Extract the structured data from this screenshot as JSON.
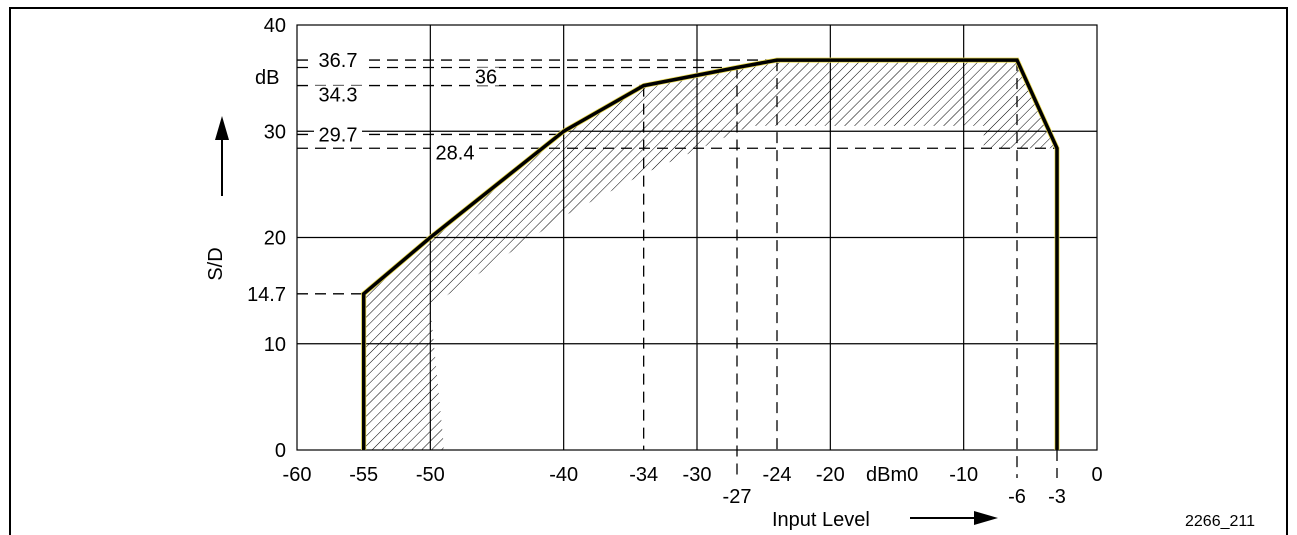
{
  "chart_data": {
    "type": "line",
    "title": "",
    "xlabel": "Input Level",
    "ylabel": "S/D",
    "y_unit": "dB",
    "x_unit": "dBm0",
    "xlim": [
      -60,
      0
    ],
    "ylim": [
      0,
      40
    ],
    "grid": true,
    "x_ticks": [
      {
        "value": -60,
        "label": "-60"
      },
      {
        "value": -55,
        "label": "-55"
      },
      {
        "value": -50,
        "label": "-50"
      },
      {
        "value": -40,
        "label": "-40"
      },
      {
        "value": -34,
        "label": "-34"
      },
      {
        "value": -30,
        "label": "-30"
      },
      {
        "value": -27,
        "label": "-27"
      },
      {
        "value": -24,
        "label": "-24"
      },
      {
        "value": -20,
        "label": "-20"
      },
      {
        "value": -10,
        "label": "-10"
      },
      {
        "value": -6,
        "label": "-6"
      },
      {
        "value": -3,
        "label": "-3"
      },
      {
        "value": 0,
        "label": "0"
      }
    ],
    "y_ticks": [
      {
        "value": 0,
        "label": "0"
      },
      {
        "value": 10,
        "label": "10"
      },
      {
        "value": 14.7,
        "label": "14.7"
      },
      {
        "value": 20,
        "label": "20"
      },
      {
        "value": 30,
        "label": "30"
      },
      {
        "value": 40,
        "label": "40"
      }
    ],
    "reference_levels": [
      {
        "value": 36.7,
        "label": "36.7"
      },
      {
        "value": 36,
        "label": "36"
      },
      {
        "value": 34.3,
        "label": "34.3"
      },
      {
        "value": 29.7,
        "label": "29.7"
      },
      {
        "value": 28.4,
        "label": "28.4"
      }
    ],
    "vertical_markers": [
      -34,
      -27,
      -24,
      -6
    ],
    "series": [
      {
        "x": [
          -55,
          -55,
          -50,
          -40,
          -34,
          -27,
          -24,
          -6,
          -3,
          -3
        ],
        "y": [
          0,
          14.7,
          20,
          30,
          34.3,
          36,
          36.7,
          36.7,
          28.4,
          0
        ]
      }
    ],
    "hatched_region": {
      "outer": [
        [
          -55,
          0
        ],
        [
          -55,
          14.7
        ],
        [
          -50,
          20
        ],
        [
          -40,
          30
        ],
        [
          -34,
          34.3
        ],
        [
          -27,
          36
        ],
        [
          -24,
          36.7
        ],
        [
          -6,
          36.7
        ],
        [
          -3,
          28.4
        ],
        [
          -3,
          0
        ]
      ],
      "inner": [
        [
          -3,
          0
        ],
        [
          -3,
          28.4
        ],
        [
          -8.5,
          28.4
        ],
        [
          -8.5,
          0.5
        ],
        [
          -8.5,
          30.5
        ],
        [
          -26,
          30.5
        ],
        [
          -34,
          26
        ],
        [
          -40,
          22
        ],
        [
          -50,
          13.5
        ],
        [
          -49,
          0.5
        ],
        [
          -49,
          0
        ]
      ]
    },
    "dB_label": "dB",
    "x_unit_label": "dBm0",
    "figure_id": "2266_211"
  }
}
